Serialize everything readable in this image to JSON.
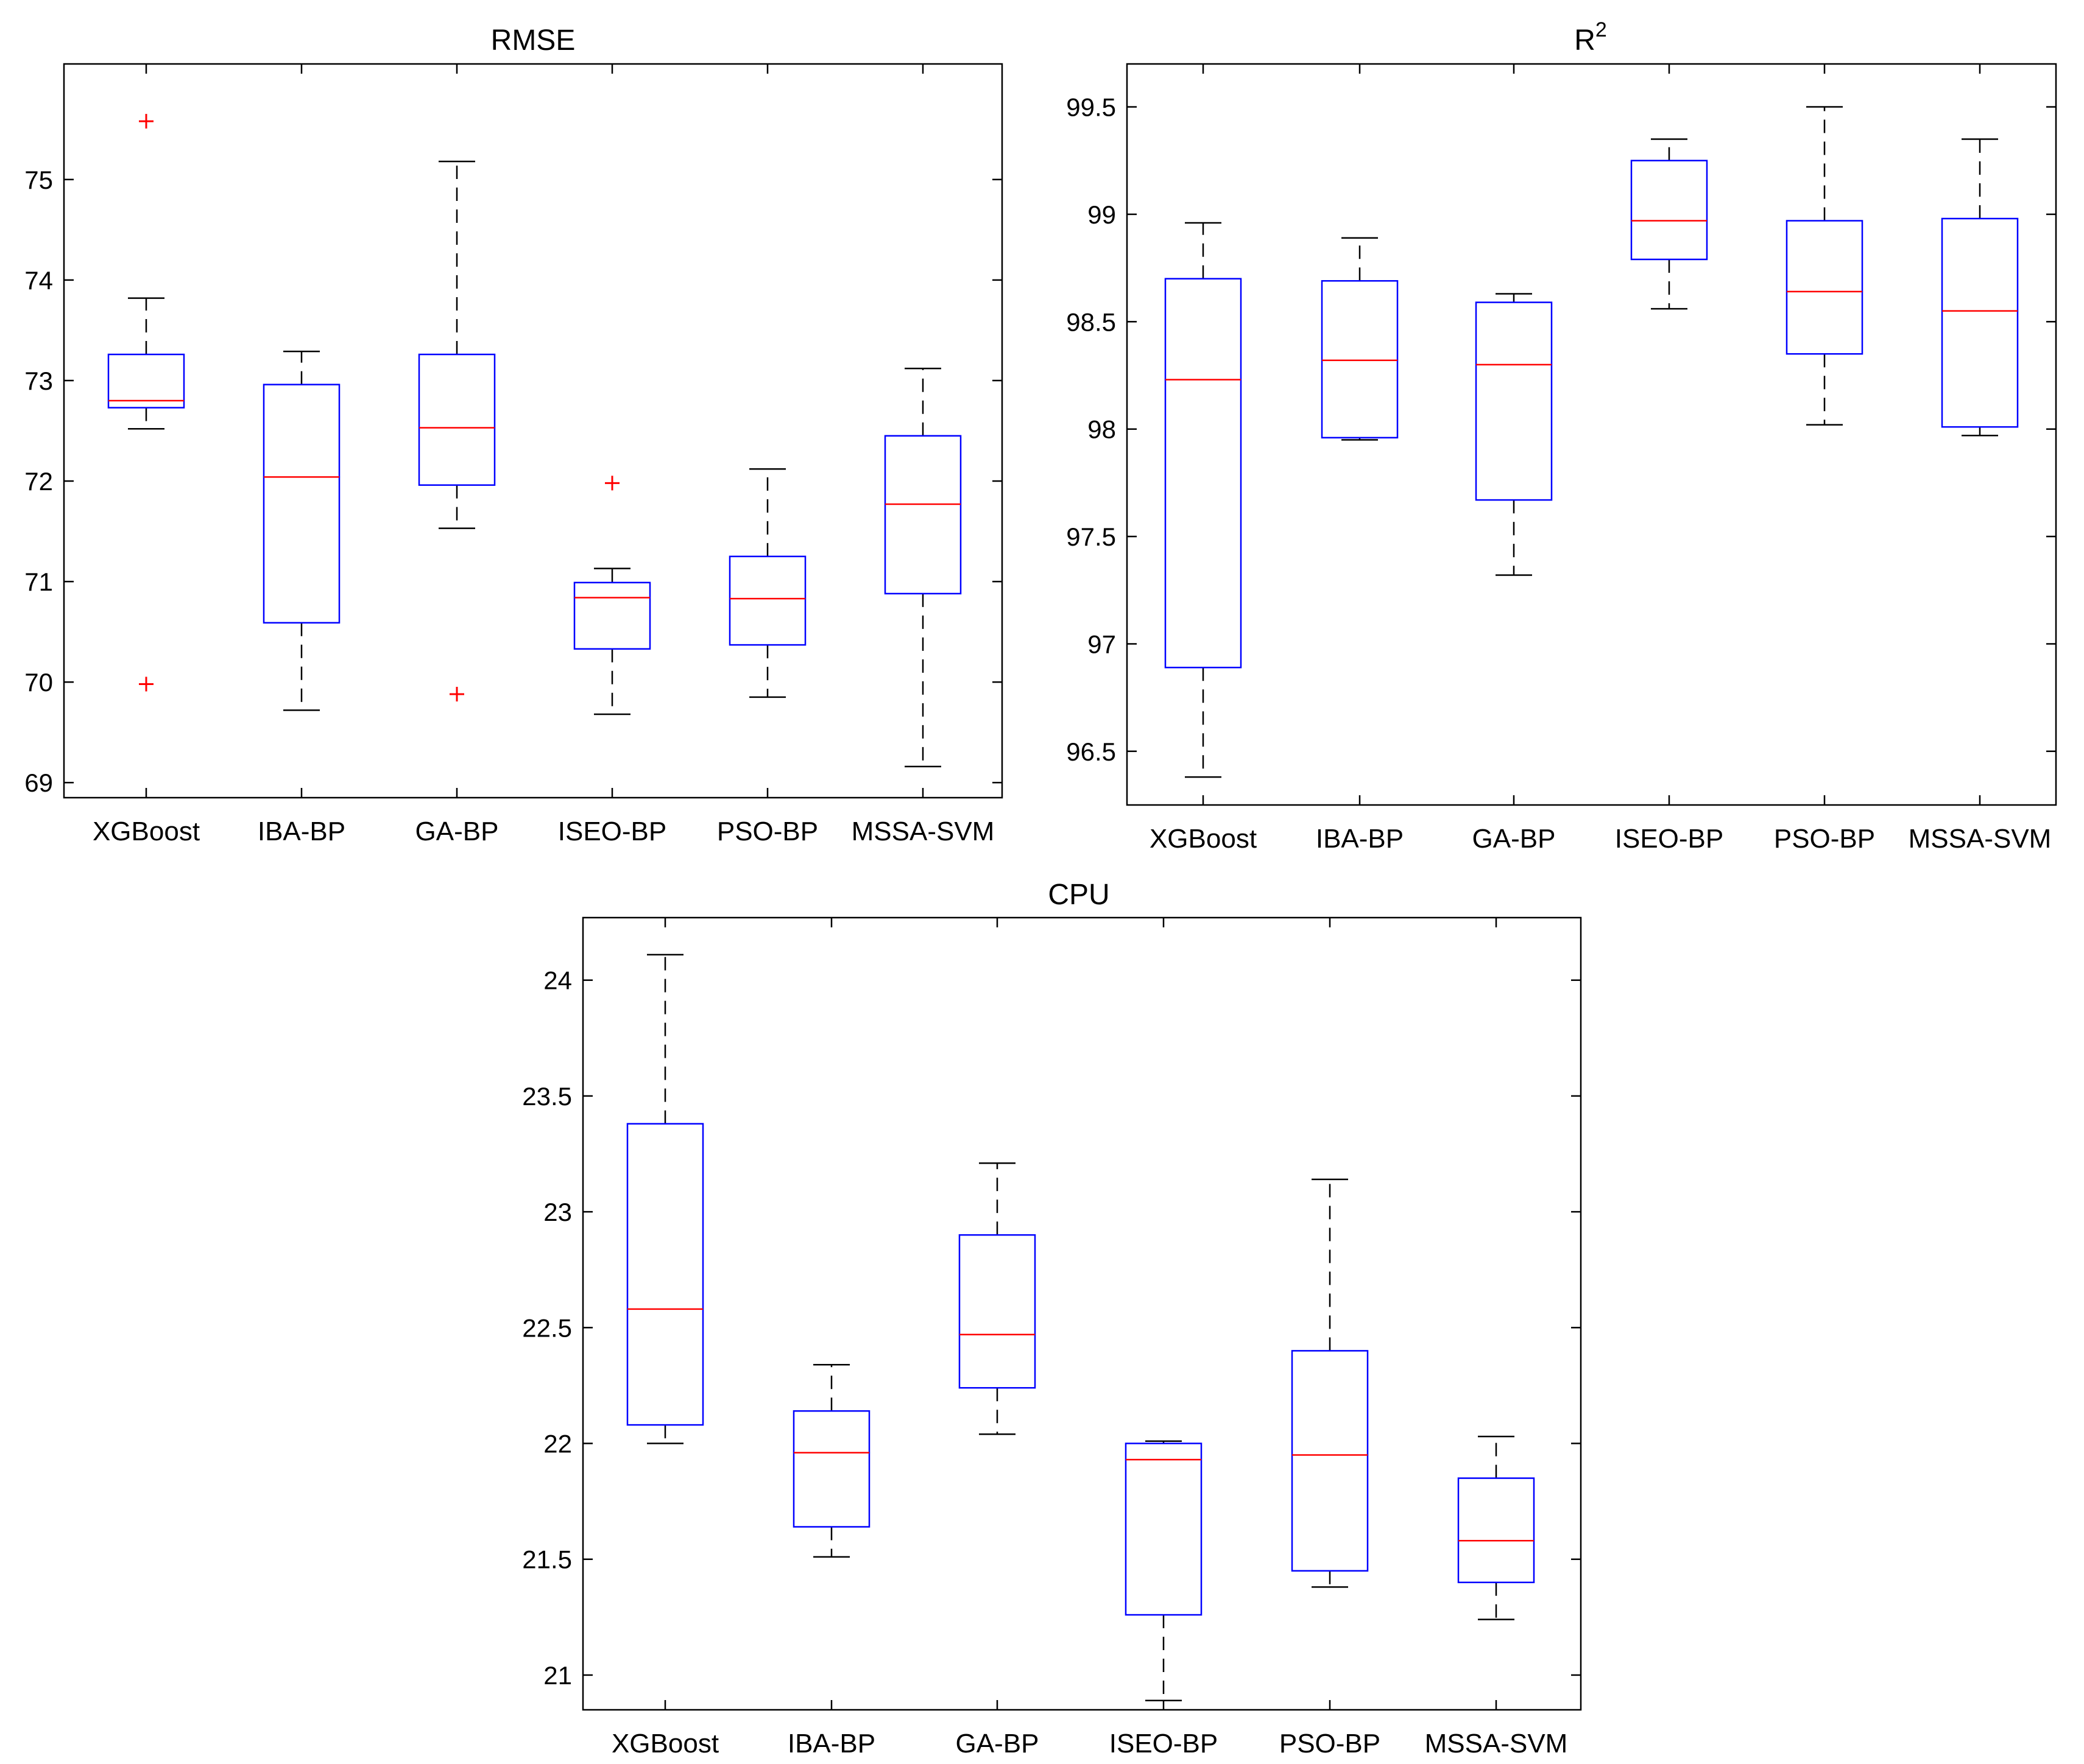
{
  "chart_data": [
    {
      "type": "box",
      "id": "rmse",
      "title": "RMSE",
      "title_superscript": "",
      "xlabel": "",
      "ylabel": "",
      "ylim": [
        68.85,
        76.15
      ],
      "yticks": [
        69,
        70,
        71,
        72,
        73,
        74,
        75
      ],
      "ytick_labels": [
        "69",
        "70",
        "71",
        "72",
        "73",
        "74",
        "75"
      ],
      "grid": false,
      "categories": [
        "XGBoost",
        "IBA-BP",
        "GA-BP",
        "ISEO-BP",
        "PSO-BP",
        "MSSA-SVM"
      ],
      "boxes": [
        {
          "whisker_low": 72.52,
          "q1": 72.73,
          "median": 72.8,
          "q3": 73.26,
          "whisker_high": 73.82,
          "outliers": [
            75.58,
            69.98
          ]
        },
        {
          "whisker_low": 69.72,
          "q1": 70.59,
          "median": 72.04,
          "q3": 72.96,
          "whisker_high": 73.29,
          "outliers": []
        },
        {
          "whisker_low": 71.53,
          "q1": 71.96,
          "median": 72.53,
          "q3": 73.26,
          "whisker_high": 75.18,
          "outliers": [
            69.88
          ]
        },
        {
          "whisker_low": 69.68,
          "q1": 70.33,
          "median": 70.84,
          "q3": 70.99,
          "whisker_high": 71.13,
          "outliers": [
            71.98
          ]
        },
        {
          "whisker_low": 69.85,
          "q1": 70.37,
          "median": 70.83,
          "q3": 71.25,
          "whisker_high": 72.12,
          "outliers": []
        },
        {
          "whisker_low": 69.16,
          "q1": 70.88,
          "median": 71.77,
          "q3": 72.45,
          "whisker_high": 73.12,
          "outliers": []
        }
      ],
      "colors": {
        "box": "#0000ff",
        "median": "#ff0000",
        "whisker": "#000000",
        "outlier": "#ff0000"
      }
    },
    {
      "type": "box",
      "id": "r2",
      "title": "R",
      "title_superscript": "2",
      "xlabel": "",
      "ylabel": "",
      "ylim": [
        96.25,
        99.7
      ],
      "yticks": [
        96.5,
        97,
        97.5,
        98,
        98.5,
        99,
        99.5
      ],
      "ytick_labels": [
        "96.5",
        "97",
        "97.5",
        "98",
        "98.5",
        "99",
        "99.5"
      ],
      "grid": false,
      "categories": [
        "XGBoost",
        "IBA-BP",
        "GA-BP",
        "ISEO-BP",
        "PSO-BP",
        "MSSA-SVM"
      ],
      "boxes": [
        {
          "whisker_low": 96.38,
          "q1": 96.89,
          "median": 98.23,
          "q3": 98.7,
          "whisker_high": 98.96,
          "outliers": []
        },
        {
          "whisker_low": 97.95,
          "q1": 97.96,
          "median": 98.32,
          "q3": 98.69,
          "whisker_high": 98.89,
          "outliers": []
        },
        {
          "whisker_low": 97.32,
          "q1": 97.67,
          "median": 98.3,
          "q3": 98.59,
          "whisker_high": 98.63,
          "outliers": []
        },
        {
          "whisker_low": 98.56,
          "q1": 98.79,
          "median": 98.97,
          "q3": 99.25,
          "whisker_high": 99.35,
          "outliers": []
        },
        {
          "whisker_low": 98.02,
          "q1": 98.35,
          "median": 98.64,
          "q3": 98.97,
          "whisker_high": 99.5,
          "outliers": []
        },
        {
          "whisker_low": 97.97,
          "q1": 98.01,
          "median": 98.55,
          "q3": 98.98,
          "whisker_high": 99.35,
          "outliers": []
        }
      ],
      "colors": {
        "box": "#0000ff",
        "median": "#ff0000",
        "whisker": "#000000",
        "outlier": "#ff0000"
      }
    },
    {
      "type": "box",
      "id": "cpu",
      "title": "CPU",
      "title_superscript": "",
      "xlabel": "",
      "ylabel": "",
      "ylim": [
        20.85,
        24.27
      ],
      "yticks": [
        21,
        21.5,
        22,
        22.5,
        23,
        23.5,
        24
      ],
      "ytick_labels": [
        "21",
        "21.5",
        "22",
        "22.5",
        "23",
        "23.5",
        "24"
      ],
      "grid": false,
      "categories": [
        "XGBoost",
        "IBA-BP",
        "GA-BP",
        "ISEO-BP",
        "PSO-BP",
        "MSSA-SVM"
      ],
      "boxes": [
        {
          "whisker_low": 22.0,
          "q1": 22.08,
          "median": 22.58,
          "q3": 23.38,
          "whisker_high": 24.11,
          "outliers": []
        },
        {
          "whisker_low": 21.51,
          "q1": 21.64,
          "median": 21.96,
          "q3": 22.14,
          "whisker_high": 22.34,
          "outliers": []
        },
        {
          "whisker_low": 22.04,
          "q1": 22.24,
          "median": 22.47,
          "q3": 22.9,
          "whisker_high": 23.21,
          "outliers": []
        },
        {
          "whisker_low": 20.89,
          "q1": 21.26,
          "median": 21.93,
          "q3": 22.0,
          "whisker_high": 22.01,
          "outliers": []
        },
        {
          "whisker_low": 21.38,
          "q1": 21.45,
          "median": 21.95,
          "q3": 22.4,
          "whisker_high": 23.14,
          "outliers": []
        },
        {
          "whisker_low": 21.24,
          "q1": 21.4,
          "median": 21.58,
          "q3": 21.85,
          "whisker_high": 22.03,
          "outliers": []
        }
      ],
      "colors": {
        "box": "#0000ff",
        "median": "#ff0000",
        "whisker": "#000000",
        "outlier": "#ff0000"
      }
    }
  ]
}
